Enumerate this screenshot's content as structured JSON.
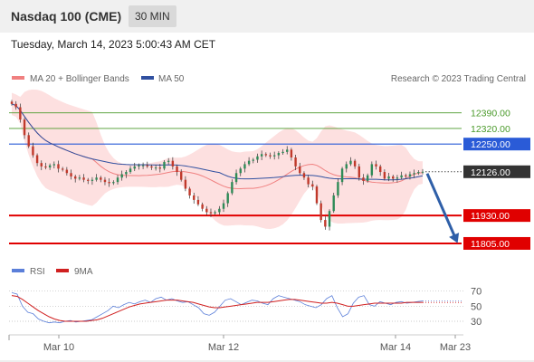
{
  "header": {
    "title": "Nasdaq 100 (CME)",
    "interval": "30 MIN",
    "datetime": "Tuesday, March 14, 2023 5:00:43 AM CET"
  },
  "legend": {
    "ma20": "MA 20 + Bollinger Bands",
    "ma50": "MA 50",
    "credit": "Research © 2023 Trading Central",
    "rsi": "RSI",
    "rsi_ma": "9MA"
  },
  "colors": {
    "ma20": "#f08080",
    "ma50": "#3050a0",
    "bollinger_fill": "#fde0e0",
    "candle_up": "#2e8b57",
    "candle_down": "#c0392b",
    "green_level": "#4a9a2a",
    "blue_level": "#2a5bd7",
    "red_level": "#e00000",
    "current_price": "#333333",
    "arrow": "#2f5fa8",
    "rsi": "#5b7fd9",
    "rsi_ma": "#d02020"
  },
  "chart_data": [
    {
      "type": "candlestick",
      "y_range": [
        11740,
        12490
      ],
      "x_ticks": [
        "Mar 10",
        "Mar 12",
        "Mar 14",
        "Mar 23"
      ],
      "levels": [
        {
          "value": 12390.0,
          "label": "12390.00",
          "kind": "resistance-green"
        },
        {
          "value": 12320.0,
          "label": "12320.00",
          "kind": "resistance-green"
        },
        {
          "value": 12250.0,
          "label": "12250.00",
          "kind": "pivot-blue"
        },
        {
          "value": 11930.0,
          "label": "11930.00",
          "kind": "support-red"
        },
        {
          "value": 11805.0,
          "label": "11805.00",
          "kind": "support-red"
        }
      ],
      "current_price": {
        "value": 12126.0,
        "label": "12126.00"
      },
      "projection": {
        "from": 12126,
        "to": 11805
      },
      "close_series": [
        12430,
        12415,
        12360,
        12290,
        12240,
        12200,
        12165,
        12150,
        12145,
        12155,
        12160,
        12140,
        12135,
        12120,
        12105,
        12095,
        12100,
        12090,
        12085,
        12090,
        12100,
        12090,
        12080,
        12075,
        12080,
        12100,
        12115,
        12125,
        12140,
        12150,
        12155,
        12155,
        12150,
        12145,
        12145,
        12140,
        12170,
        12175,
        12150,
        12125,
        12090,
        12050,
        12020,
        12000,
        11980,
        11960,
        11945,
        11940,
        11945,
        11960,
        11985,
        12030,
        12080,
        12120,
        12140,
        12160,
        12175,
        12180,
        12195,
        12205,
        12200,
        12195,
        12200,
        12210,
        12215,
        12225,
        12190,
        12150,
        12120,
        12100,
        12070,
        12060,
        11985,
        11910,
        11880,
        11950,
        12020,
        12080,
        12140,
        12160,
        12175,
        12150,
        12100,
        12085,
        12110,
        12160,
        12150,
        12125,
        12095,
        12105,
        12095,
        12100,
        12110,
        12105,
        12115,
        12120,
        12125,
        12126
      ]
    },
    {
      "type": "line",
      "title": "RSI",
      "y_range": [
        18,
        78
      ],
      "y_ticks": [
        30,
        50,
        70
      ],
      "series": [
        {
          "name": "RSI",
          "values": [
            68,
            66,
            50,
            42,
            40,
            33,
            30,
            28,
            29,
            28,
            30,
            31,
            29,
            30,
            31,
            32,
            36,
            40,
            44,
            50,
            48,
            52,
            55,
            53,
            56,
            58,
            55,
            60,
            62,
            58,
            60,
            57,
            55,
            56,
            52,
            48,
            40,
            38,
            42,
            50,
            58,
            60,
            56,
            52,
            55,
            58,
            57,
            54,
            52,
            60,
            64,
            62,
            60,
            58,
            56,
            52,
            50,
            48,
            52,
            60,
            64,
            48,
            36,
            40,
            54,
            62,
            64,
            52,
            50,
            56,
            54,
            52,
            55,
            56,
            54,
            55,
            56,
            57
          ]
        },
        {
          "name": "9MA",
          "values": [
            64,
            63,
            59,
            54,
            49,
            44,
            40,
            36,
            33,
            31,
            30,
            30,
            30,
            30,
            30,
            31,
            32,
            34,
            37,
            40,
            43,
            46,
            49,
            51,
            53,
            54,
            55,
            56,
            57,
            58,
            58,
            58,
            57,
            56,
            55,
            53,
            51,
            49,
            48,
            48,
            49,
            50,
            51,
            52,
            53,
            54,
            55,
            55,
            55,
            56,
            57,
            58,
            59,
            59,
            58,
            57,
            56,
            55,
            54,
            54,
            55,
            54,
            52,
            50,
            50,
            51,
            52,
            53,
            54,
            54,
            54,
            54,
            54,
            54,
            55,
            55,
            55,
            55
          ]
        }
      ]
    }
  ]
}
